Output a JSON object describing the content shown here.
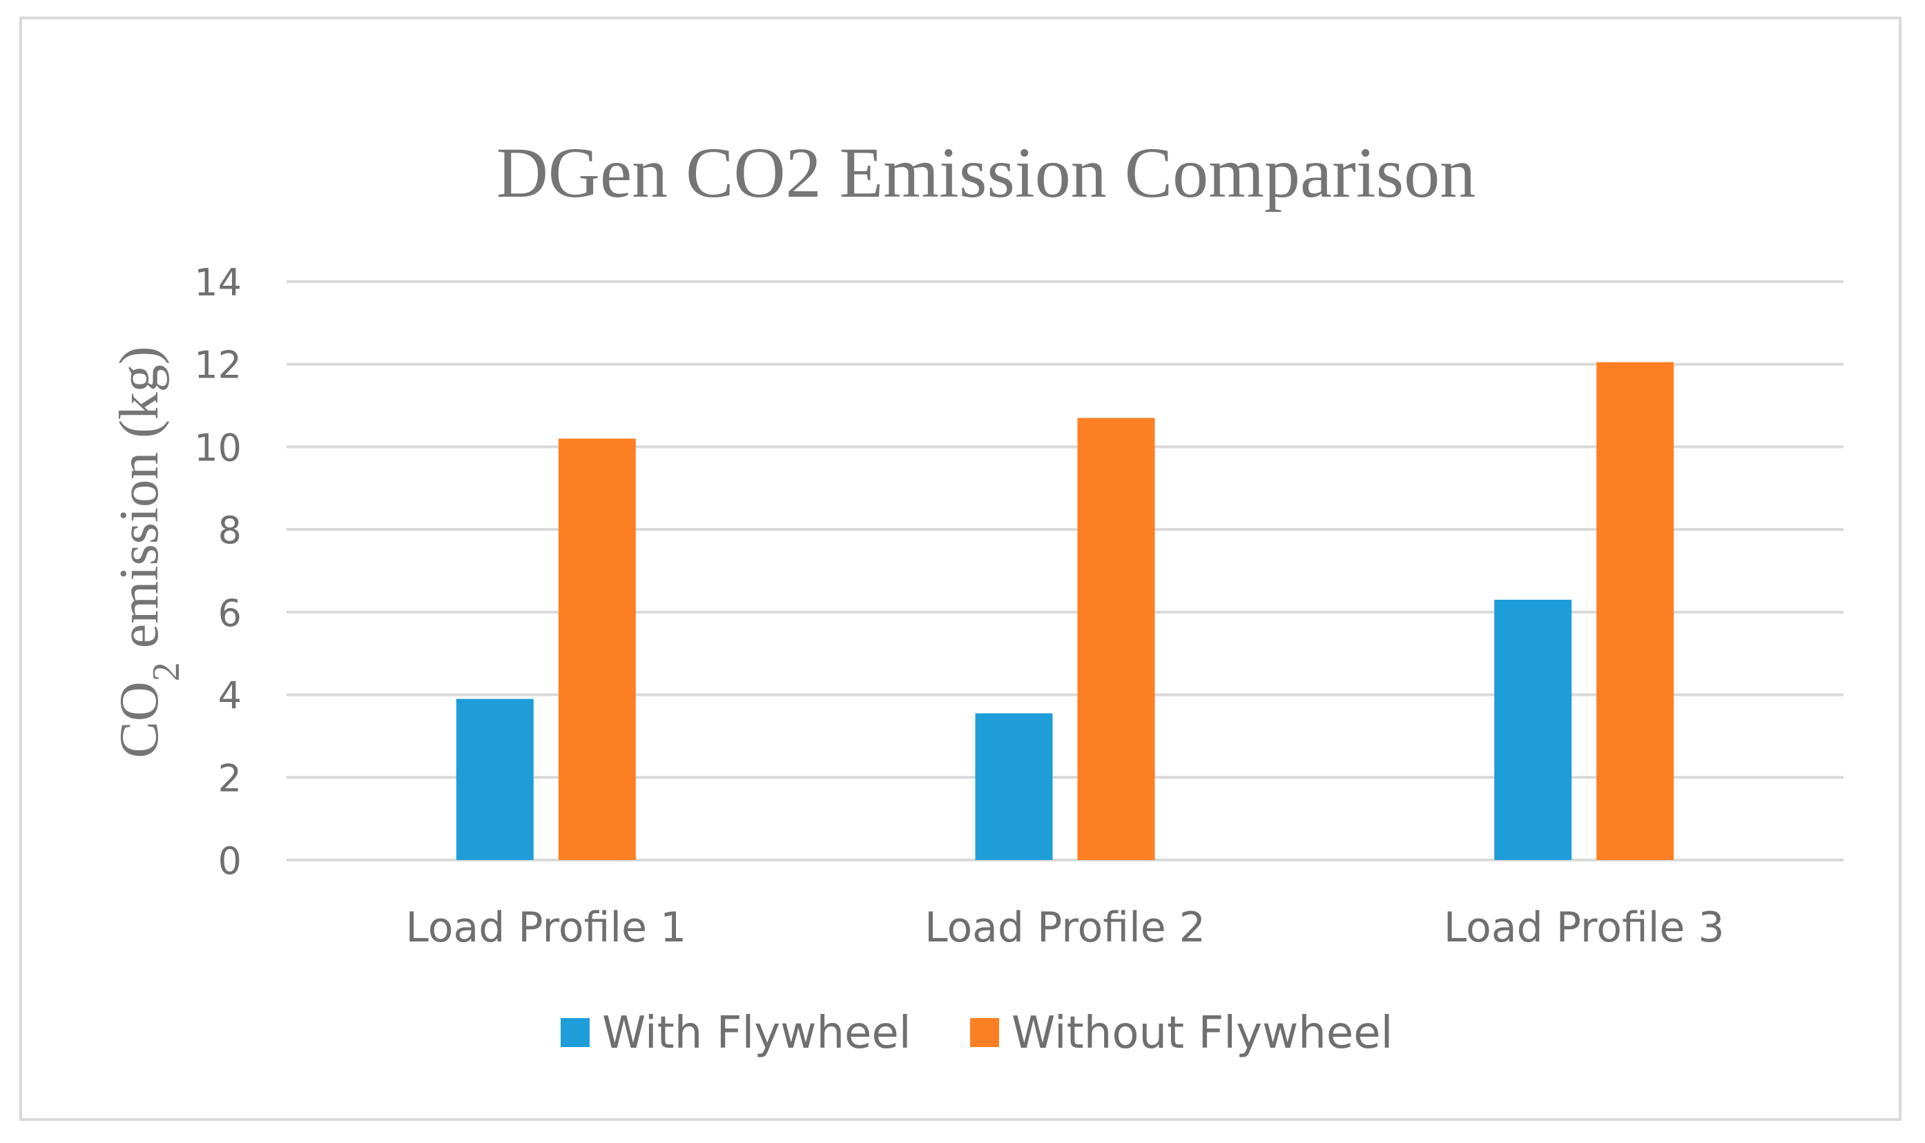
{
  "chart_data": {
    "type": "bar",
    "title": "DGen CO2 Emission Comparison",
    "ylabel": {
      "main": "CO",
      "subscript": "2",
      "rest": " emission (kg)"
    },
    "xlabel": "",
    "ylim": [
      0,
      14
    ],
    "yticks": [
      0,
      2,
      4,
      6,
      8,
      10,
      12,
      14
    ],
    "grid": true,
    "legend_position": "bottom",
    "categories": [
      "Load Profile 1",
      "Load Profile 2",
      "Load Profile 3"
    ],
    "series": [
      {
        "name": "With Flywheel",
        "color": "#1f9dd9",
        "values": [
          3.9,
          3.55,
          6.3
        ]
      },
      {
        "name": "Without Flywheel",
        "color": "#fd7f23",
        "values": [
          10.2,
          10.7,
          12.05
        ]
      }
    ]
  }
}
